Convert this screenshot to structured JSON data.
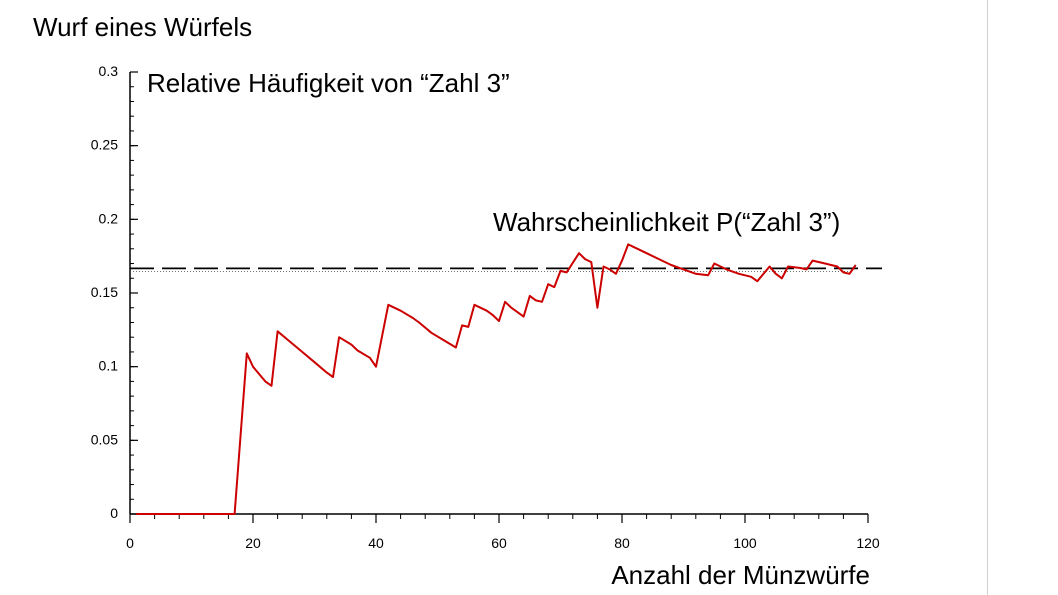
{
  "window_title": "Wurf eines Würfels",
  "chart_data": {
    "type": "line",
    "title": "Wurf eines Würfels",
    "xlabel": "Anzahl der Münzwürfe",
    "ylabel": "",
    "xlim": [
      0,
      120
    ],
    "ylim": [
      0,
      0.3
    ],
    "x_ticks": [
      "0",
      "20",
      "40",
      "60",
      "80",
      "100",
      "120"
    ],
    "y_ticks": [
      "0",
      "0.05",
      "0.1",
      "0.15",
      "0.2",
      "0.25",
      "0.3"
    ],
    "annotations": [
      "Relative Häufigkeit von “Zahl 3”",
      "Wahrscheinlichkeit P(“Zahl 3”)"
    ],
    "colors": {
      "relative_frequency": "#cc0000",
      "probability": "#000000"
    },
    "reference_line": {
      "y": 0.1667,
      "style": "dashed"
    },
    "series": [
      {
        "x": [
          1,
          17,
          19,
          20,
          21,
          22,
          23,
          24,
          26,
          28,
          30,
          32,
          33,
          34,
          36,
          37,
          39,
          40,
          42,
          44,
          46,
          47,
          49,
          51,
          53,
          54,
          55,
          56,
          58,
          59,
          60,
          61,
          62,
          64,
          65,
          66,
          67,
          68,
          69,
          70,
          71,
          73,
          74,
          75,
          76,
          77,
          78,
          79,
          80,
          81,
          82,
          84,
          86,
          88,
          90,
          92,
          94,
          95,
          97,
          99,
          101,
          102,
          104,
          105,
          106,
          107,
          109,
          110,
          111,
          113,
          115,
          116,
          117,
          118
        ],
        "y": [
          0,
          0,
          0.109,
          0.1,
          0.095,
          0.09,
          0.087,
          0.124,
          0.117,
          0.11,
          0.103,
          0.096,
          0.093,
          0.12,
          0.115,
          0.111,
          0.106,
          0.1,
          0.142,
          0.138,
          0.133,
          0.13,
          0.123,
          0.118,
          0.113,
          0.128,
          0.127,
          0.142,
          0.138,
          0.135,
          0.131,
          0.144,
          0.14,
          0.134,
          0.148,
          0.145,
          0.144,
          0.156,
          0.154,
          0.165,
          0.164,
          0.177,
          0.173,
          0.171,
          0.14,
          0.168,
          0.166,
          0.163,
          0.172,
          0.183,
          0.181,
          0.177,
          0.173,
          0.169,
          0.166,
          0.163,
          0.162,
          0.17,
          0.166,
          0.163,
          0.161,
          0.158,
          0.168,
          0.163,
          0.16,
          0.168,
          0.167,
          0.166,
          0.172,
          0.17,
          0.168,
          0.164,
          0.163,
          0.169
        ]
      }
    ]
  }
}
